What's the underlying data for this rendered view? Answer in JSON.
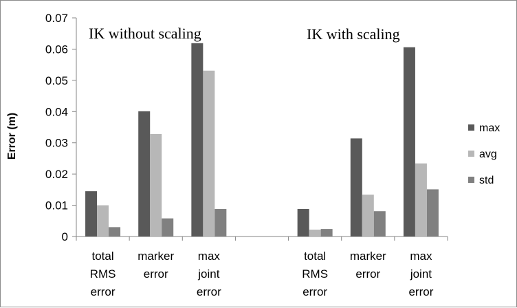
{
  "chart_data": {
    "type": "bar",
    "ylabel": "Error (m)",
    "xlabel": "",
    "ylim": [
      0,
      0.07
    ],
    "yticks": [
      "0",
      "0.01",
      "0.02",
      "0.03",
      "0.04",
      "0.05",
      "0.06",
      "0.07"
    ],
    "grid": false,
    "legend_position": "right",
    "categories": [
      [
        "total",
        "RMS",
        "error"
      ],
      [
        "marker",
        "error"
      ],
      [
        "max",
        "joint",
        "error"
      ],
      [],
      [
        "total",
        "RMS",
        "error"
      ],
      [
        "marker",
        "error"
      ],
      [
        "max",
        "joint",
        "error"
      ]
    ],
    "series": [
      {
        "name": "max",
        "color": "#595959",
        "values": [
          0.0145,
          0.0401,
          0.0619,
          null,
          0.0088,
          0.0314,
          0.0606
        ]
      },
      {
        "name": "avg",
        "color": "#b7b7b7",
        "values": [
          0.01,
          0.0328,
          0.0531,
          null,
          0.0022,
          0.0134,
          0.0234
        ]
      },
      {
        "name": "std",
        "color": "#808080",
        "values": [
          0.003,
          0.0058,
          0.0088,
          null,
          0.0024,
          0.0081,
          0.0151
        ]
      }
    ],
    "annotations": [
      "IK without scaling",
      "IK with scaling"
    ]
  }
}
